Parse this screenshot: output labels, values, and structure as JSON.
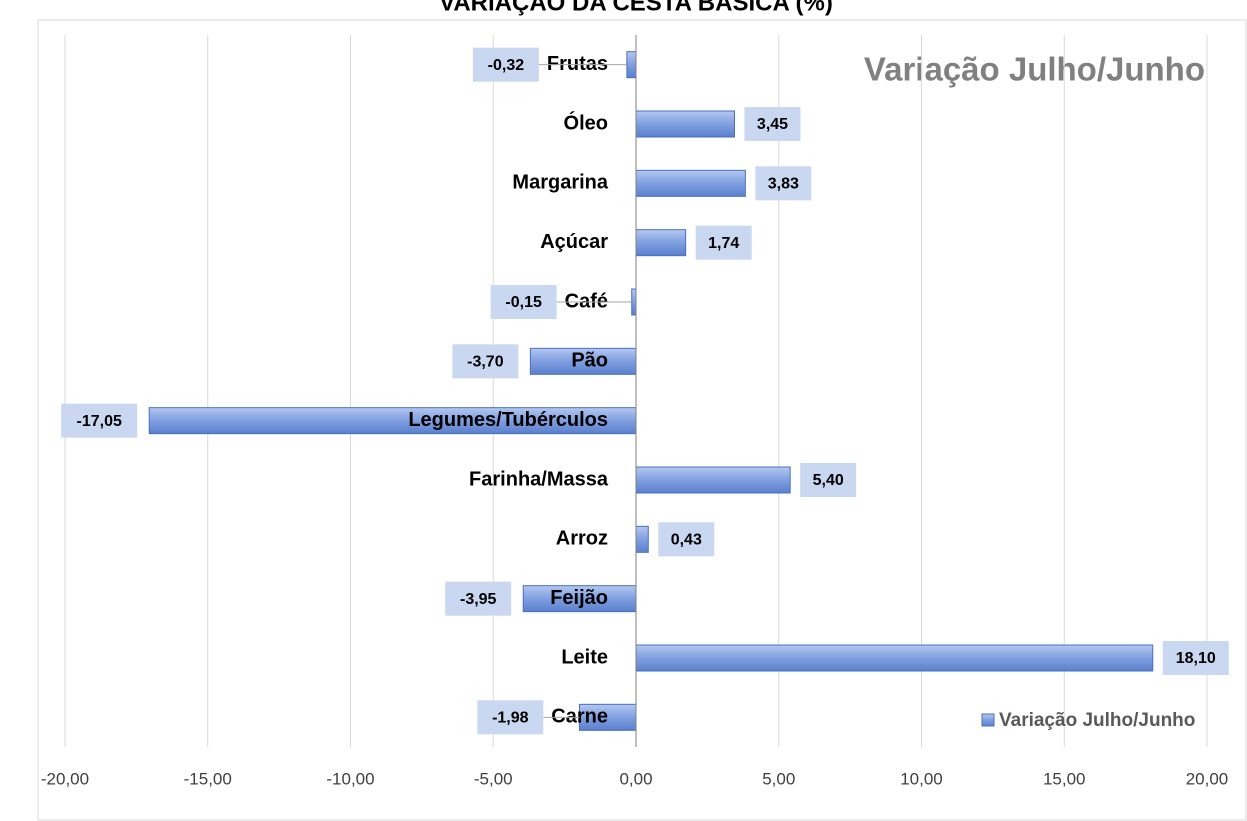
{
  "chart_data": {
    "type": "barh",
    "title": "VARIAÇÃO DA CESTA BÁSICA (%)",
    "annotation": "Variação Julho/Junho",
    "categories": [
      "Frutas",
      "Óleo",
      "Margarina",
      "Açúcar",
      "Café",
      "Pão",
      "Legumes/Tubérculos",
      "Farinha/Massa",
      "Arroz",
      "Feijão",
      "Leite",
      "Carne"
    ],
    "series": [
      {
        "name": "Variação Julho/Junho",
        "color": "#7f9fe0",
        "values": [
          -0.32,
          3.45,
          3.83,
          1.74,
          -0.15,
          -3.7,
          -17.05,
          5.4,
          0.43,
          -3.95,
          18.1,
          -1.98
        ],
        "value_labels": [
          "-0,32",
          "3,45",
          "3,83",
          "1,74",
          "-0,15",
          "-3,70",
          "-17,05",
          "5,40",
          "0,43",
          "-3,95",
          "18,10",
          "-1,98"
        ]
      }
    ],
    "xlim": [
      -20,
      20
    ],
    "xticks": [
      {
        "value": -20,
        "label": "-20,00"
      },
      {
        "value": -15,
        "label": "-15,00"
      },
      {
        "value": -10,
        "label": "-10,00"
      },
      {
        "value": -5,
        "label": "-5,00"
      },
      {
        "value": 0,
        "label": "0,00"
      },
      {
        "value": 5,
        "label": "5,00"
      },
      {
        "value": 10,
        "label": "10,00"
      },
      {
        "value": 15,
        "label": "15,00"
      },
      {
        "value": 20,
        "label": "20,00"
      }
    ],
    "grid": true,
    "legend": "bottom-right"
  }
}
